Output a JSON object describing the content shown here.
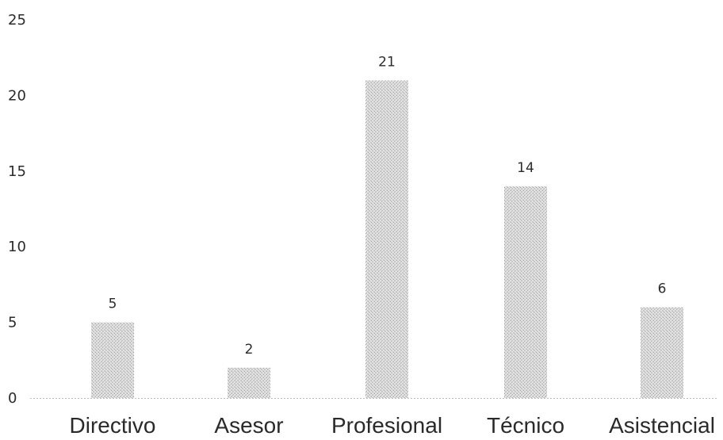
{
  "chart_data": {
    "type": "bar",
    "categories": [
      "Directivo",
      "Asesor",
      "Profesional",
      "Técnico",
      "Asistencial"
    ],
    "values": [
      5,
      2,
      21,
      14,
      6
    ],
    "data_labels": [
      "5",
      "2",
      "21",
      "14",
      "6"
    ],
    "yticks": [
      "0",
      "5",
      "10",
      "15",
      "20",
      "25"
    ],
    "ylim": [
      0,
      25
    ],
    "title": "",
    "xlabel": "",
    "ylabel": "",
    "grid": false,
    "legend": "none",
    "bar_color": "#c9c9c9"
  }
}
